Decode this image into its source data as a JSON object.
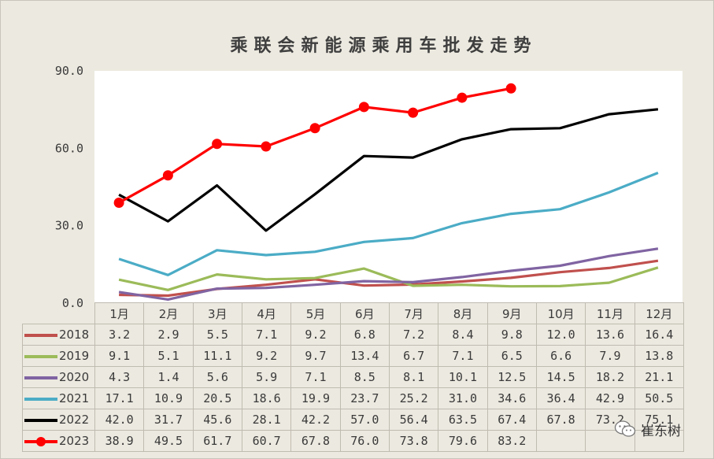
{
  "chart_data": {
    "type": "line",
    "title": "乘联会新能源乘用车批发走势",
    "categories": [
      "1月",
      "2月",
      "3月",
      "4月",
      "5月",
      "6月",
      "7月",
      "8月",
      "9月",
      "10月",
      "11月",
      "12月"
    ],
    "ylim": [
      0,
      90
    ],
    "yticks": [
      "0.0",
      "30.0",
      "60.0",
      "90.0"
    ],
    "ytick_values": [
      0,
      30,
      60,
      90
    ],
    "grid": false,
    "legend_placement": "data-table-left",
    "series": [
      {
        "name": "2018",
        "color": "#c0504d",
        "markers": false,
        "values": [
          3.2,
          2.9,
          5.5,
          7.1,
          9.2,
          6.8,
          7.2,
          8.4,
          9.8,
          12.0,
          13.6,
          16.4
        ],
        "labels": [
          "3.2",
          "2.9",
          "5.5",
          "7.1",
          "9.2",
          "6.8",
          "7.2",
          "8.4",
          "9.8",
          "12.0",
          "13.6",
          "16.4"
        ]
      },
      {
        "name": "2019",
        "color": "#9bbb59",
        "markers": false,
        "values": [
          9.1,
          5.1,
          11.1,
          9.2,
          9.7,
          13.4,
          6.7,
          7.1,
          6.5,
          6.6,
          7.9,
          13.8
        ],
        "labels": [
          "9.1",
          "5.1",
          "11.1",
          "9.2",
          "9.7",
          "13.4",
          "6.7",
          "7.1",
          "6.5",
          "6.6",
          "7.9",
          "13.8"
        ]
      },
      {
        "name": "2020",
        "color": "#8064a2",
        "markers": false,
        "values": [
          4.3,
          1.4,
          5.6,
          5.9,
          7.1,
          8.5,
          8.1,
          10.1,
          12.5,
          14.5,
          18.2,
          21.1
        ],
        "labels": [
          "4.3",
          "1.4",
          "5.6",
          "5.9",
          "7.1",
          "8.5",
          "8.1",
          "10.1",
          "12.5",
          "14.5",
          "18.2",
          "21.1"
        ]
      },
      {
        "name": "2021",
        "color": "#4bacc6",
        "markers": false,
        "values": [
          17.1,
          10.9,
          20.5,
          18.6,
          19.9,
          23.7,
          25.2,
          31.0,
          34.6,
          36.4,
          42.9,
          50.5
        ],
        "labels": [
          "17.1",
          "10.9",
          "20.5",
          "18.6",
          "19.9",
          "23.7",
          "25.2",
          "31.0",
          "34.6",
          "36.4",
          "42.9",
          "50.5"
        ]
      },
      {
        "name": "2022",
        "color": "#000000",
        "markers": false,
        "values": [
          42.0,
          31.7,
          45.6,
          28.1,
          42.2,
          57.0,
          56.4,
          63.5,
          67.4,
          67.8,
          73.2,
          75.1
        ],
        "labels": [
          "42.0",
          "31.7",
          "45.6",
          "28.1",
          "42.2",
          "57.0",
          "56.4",
          "63.5",
          "67.4",
          "67.8",
          "73.2",
          "75.1"
        ]
      },
      {
        "name": "2023",
        "color": "#ff0000",
        "markers": true,
        "values": [
          38.9,
          49.5,
          61.7,
          60.7,
          67.8,
          76.0,
          73.8,
          79.6,
          83.2,
          null,
          null,
          null
        ],
        "labels": [
          "38.9",
          "49.5",
          "61.7",
          "60.7",
          "67.8",
          "76.0",
          "73.8",
          "79.6",
          "83.2",
          "",
          "",
          ""
        ]
      }
    ]
  },
  "watermark": {
    "text": "崔东树",
    "icon": "wechat-icon"
  }
}
